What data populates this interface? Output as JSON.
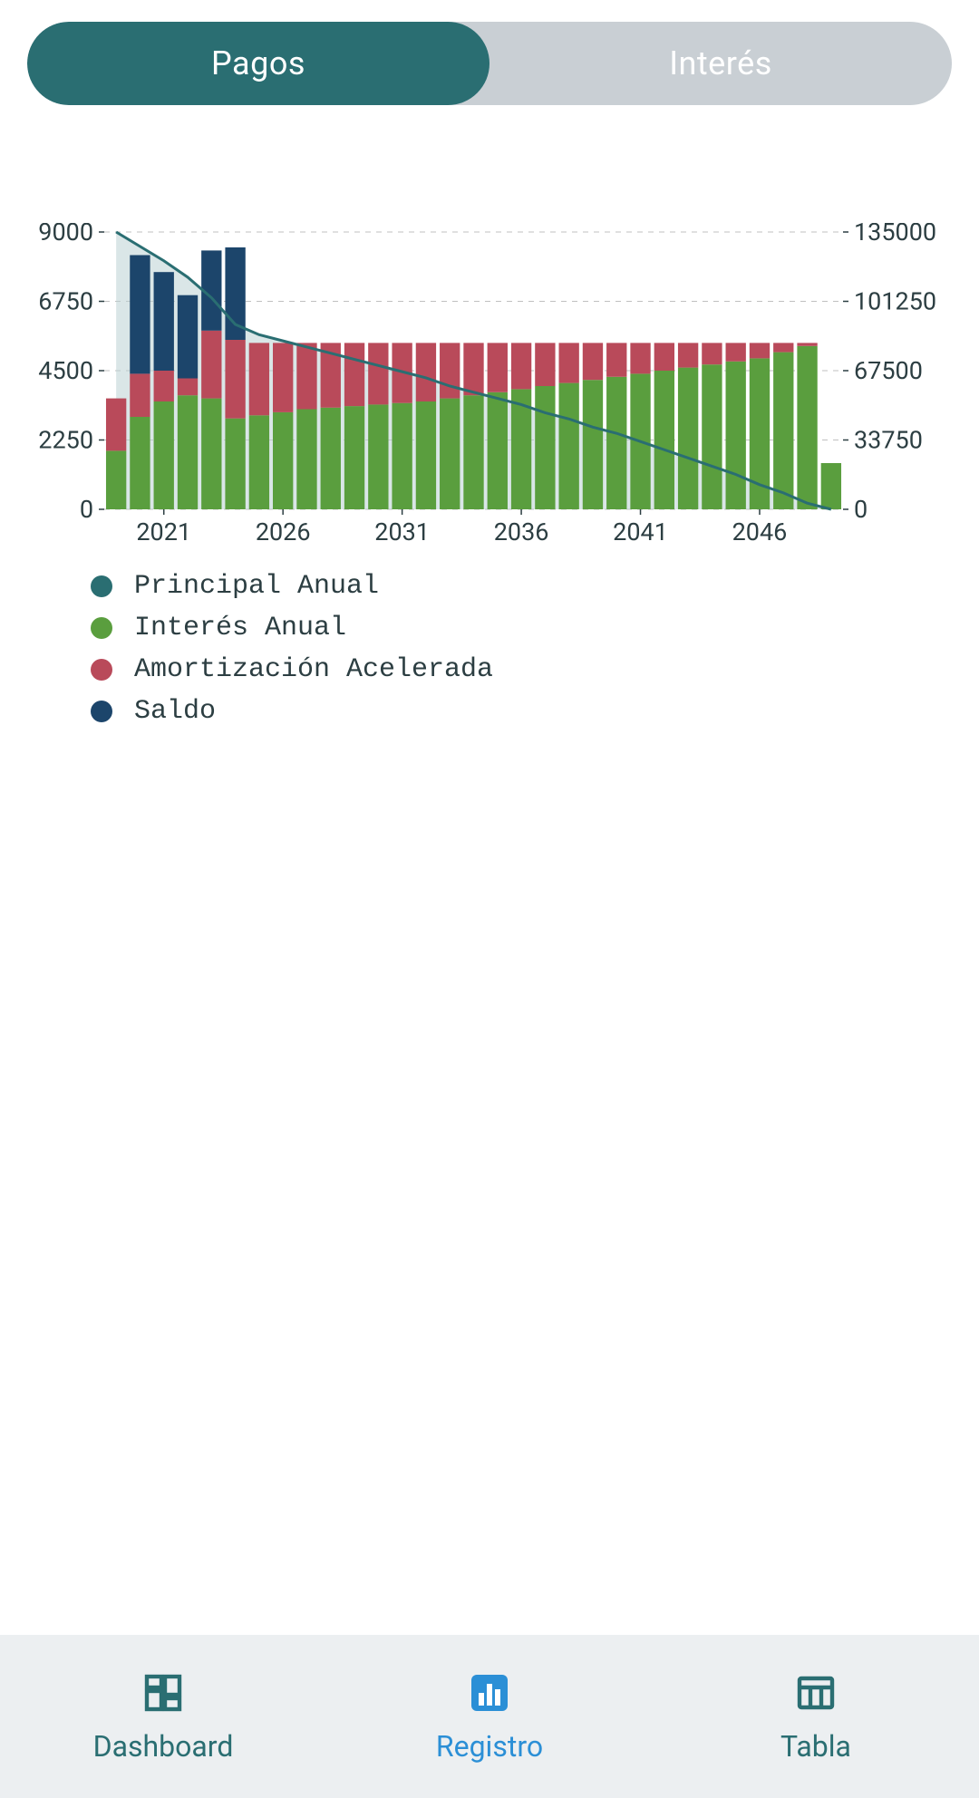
{
  "segmented": {
    "tabs": [
      {
        "label": "Pagos",
        "active": true
      },
      {
        "label": "Interés",
        "active": false
      }
    ],
    "active_bg": "#2a6e72",
    "inactive_bg": "#c9cfd4",
    "text_color": "#ffffff",
    "fontsize": 36
  },
  "chart": {
    "type": "stacked-bar-with-area",
    "years": [
      2019,
      2020,
      2021,
      2022,
      2023,
      2024,
      2025,
      2026,
      2027,
      2028,
      2029,
      2030,
      2031,
      2032,
      2033,
      2034,
      2035,
      2036,
      2037,
      2038,
      2039,
      2040,
      2041,
      2042,
      2043,
      2044,
      2045,
      2046,
      2047,
      2048,
      2049
    ],
    "interes_anual": [
      1900,
      3000,
      3500,
      3700,
      3600,
      2950,
      3050,
      3150,
      3250,
      3300,
      3350,
      3400,
      3450,
      3500,
      3600,
      3700,
      3800,
      3900,
      4000,
      4100,
      4200,
      4300,
      4400,
      4500,
      4600,
      4700,
      4800,
      4900,
      5100,
      5300,
      1500
    ],
    "amort_acelerada": [
      1700,
      1400,
      1000,
      550,
      2200,
      2550,
      2350,
      2250,
      2150,
      2100,
      2050,
      2000,
      1950,
      1900,
      1800,
      1700,
      1600,
      1500,
      1400,
      1300,
      1200,
      1100,
      1000,
      900,
      800,
      700,
      600,
      500,
      300,
      100,
      0
    ],
    "saldo_top": [
      0,
      3850,
      3200,
      2700,
      2600,
      3000,
      0,
      0,
      0,
      0,
      0,
      0,
      0,
      0,
      0,
      0,
      0,
      0,
      0,
      0,
      0,
      0,
      0,
      0,
      0,
      0,
      0,
      0,
      0,
      0,
      0
    ],
    "balance_right": [
      135000,
      128000,
      121000,
      113000,
      103000,
      90000,
      85000,
      82000,
      79000,
      76000,
      73000,
      70000,
      67000,
      64000,
      60000,
      57000,
      54000,
      51000,
      47000,
      44000,
      40000,
      37000,
      33000,
      29000,
      25000,
      21000,
      17000,
      12000,
      8000,
      3000,
      0
    ],
    "colors": {
      "principal_area_fill": "#bcd1d3",
      "principal_area_stroke": "#2a6e72",
      "interes": "#5a9e3e",
      "amortizacion": "#b94a5a",
      "saldo": "#1c456b",
      "grid": "#c0c0c0",
      "axis_text": "#2c3e42"
    },
    "left_axis": {
      "min": 0,
      "max": 9000,
      "ticks": [
        0,
        2250,
        4500,
        6750,
        9000
      ],
      "fontsize": 30
    },
    "right_axis": {
      "min": 0,
      "max": 135000,
      "ticks": [
        0,
        33750,
        67500,
        101250,
        135000
      ],
      "fontsize": 30
    },
    "x_axis": {
      "tick_years": [
        2021,
        2026,
        2031,
        2036,
        2041,
        2046
      ],
      "fontsize": 30
    },
    "bar_gap_ratio": 0.15
  },
  "legend": {
    "items": [
      {
        "label": "Principal Anual",
        "color": "#2a6e72"
      },
      {
        "label": "Interés Anual",
        "color": "#5a9e3e"
      },
      {
        "label": "Amortización Acelerada",
        "color": "#b94a5a"
      },
      {
        "label": "Saldo",
        "color": "#1c456b"
      }
    ],
    "font_family": "monospace",
    "fontsize": 30
  },
  "bottom_nav": {
    "items": [
      {
        "label": "Dashboard",
        "icon": "dashboard",
        "active": false
      },
      {
        "label": "Registro",
        "icon": "bar-chart",
        "active": true
      },
      {
        "label": "Tabla",
        "icon": "table",
        "active": false
      }
    ],
    "bg": "#eceff1",
    "inactive_color": "#2a6e72",
    "active_color": "#2b8fd6",
    "fontsize": 32
  }
}
